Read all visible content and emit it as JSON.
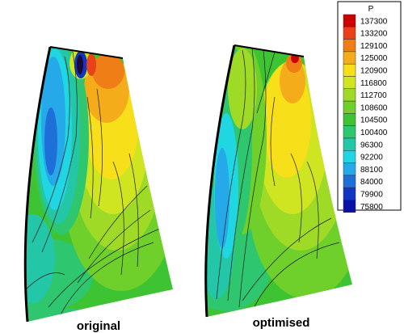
{
  "panels": [
    {
      "label": "original"
    },
    {
      "label": "optimised"
    }
  ],
  "legend": {
    "title": "P",
    "levels": [
      {
        "value": "137300",
        "color": "#cc0000"
      },
      {
        "value": "133200",
        "color": "#e8421a"
      },
      {
        "value": "129100",
        "color": "#f07e17"
      },
      {
        "value": "125000",
        "color": "#f5ac1a"
      },
      {
        "value": "120900",
        "color": "#f7e01a"
      },
      {
        "value": "116800",
        "color": "#cfe522"
      },
      {
        "value": "112700",
        "color": "#9fda27"
      },
      {
        "value": "108600",
        "color": "#6fcf2b"
      },
      {
        "value": "104500",
        "color": "#3ec432"
      },
      {
        "value": "100400",
        "color": "#2ec66f"
      },
      {
        "value": "96300",
        "color": "#23c7a8"
      },
      {
        "value": "92200",
        "color": "#20d6e3"
      },
      {
        "value": "88100",
        "color": "#25a9e8"
      },
      {
        "value": "84000",
        "color": "#1f6fd8"
      },
      {
        "value": "79900",
        "color": "#1236c4"
      },
      {
        "value": "75800",
        "color": "#0a10a8"
      }
    ]
  }
}
